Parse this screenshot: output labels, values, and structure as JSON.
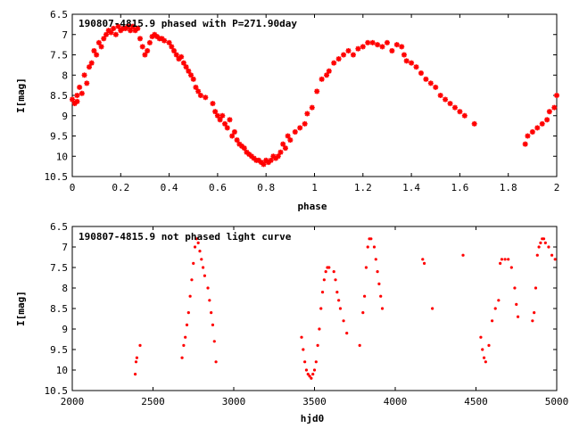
{
  "colors": {
    "points": "#ff0000",
    "axes": "#000000",
    "background": "#ffffff"
  },
  "chart_data": [
    {
      "type": "scatter",
      "title": "190807-4815.9 phased with P=271.90day",
      "xlabel": "phase",
      "ylabel": "I[mag]",
      "xlim": [
        0,
        2
      ],
      "ylim": [
        10.5,
        6.5
      ],
      "y_inverted": true,
      "grid": false,
      "marker": "star",
      "xticks": [
        "0",
        "0.2",
        "0.4",
        "0.6",
        "0.8",
        "1",
        "1.2",
        "1.4",
        "1.6",
        "1.8",
        "2"
      ],
      "yticks": [
        "6.5",
        "7",
        "7.5",
        "8",
        "8.5",
        "9",
        "9.5",
        "10",
        "10.5"
      ],
      "points": [
        [
          0.0,
          8.6
        ],
        [
          0.01,
          8.7
        ],
        [
          0.02,
          8.5
        ],
        [
          0.02,
          8.65
        ],
        [
          0.03,
          8.3
        ],
        [
          0.04,
          8.45
        ],
        [
          0.05,
          8.0
        ],
        [
          0.06,
          8.2
        ],
        [
          0.07,
          7.8
        ],
        [
          0.08,
          7.7
        ],
        [
          0.09,
          7.4
        ],
        [
          0.1,
          7.5
        ],
        [
          0.11,
          7.2
        ],
        [
          0.12,
          7.3
        ],
        [
          0.13,
          7.1
        ],
        [
          0.14,
          7.0
        ],
        [
          0.15,
          6.9
        ],
        [
          0.16,
          6.95
        ],
        [
          0.17,
          6.85
        ],
        [
          0.18,
          7.0
        ],
        [
          0.19,
          6.8
        ],
        [
          0.2,
          6.9
        ],
        [
          0.21,
          6.85
        ],
        [
          0.22,
          6.85
        ],
        [
          0.23,
          6.8
        ],
        [
          0.24,
          6.9
        ],
        [
          0.25,
          6.8
        ],
        [
          0.26,
          6.9
        ],
        [
          0.27,
          6.85
        ],
        [
          0.28,
          7.1
        ],
        [
          0.29,
          7.3
        ],
        [
          0.3,
          7.5
        ],
        [
          0.31,
          7.4
        ],
        [
          0.32,
          7.2
        ],
        [
          0.33,
          7.05
        ],
        [
          0.34,
          7.0
        ],
        [
          0.35,
          7.05
        ],
        [
          0.36,
          7.1
        ],
        [
          0.37,
          7.1
        ],
        [
          0.38,
          7.15
        ],
        [
          0.4,
          7.2
        ],
        [
          0.41,
          7.3
        ],
        [
          0.42,
          7.4
        ],
        [
          0.43,
          7.5
        ],
        [
          0.44,
          7.6
        ],
        [
          0.45,
          7.55
        ],
        [
          0.46,
          7.7
        ],
        [
          0.47,
          7.8
        ],
        [
          0.48,
          7.9
        ],
        [
          0.49,
          8.0
        ],
        [
          0.5,
          8.1
        ],
        [
          0.51,
          8.3
        ],
        [
          0.52,
          8.4
        ],
        [
          0.53,
          8.5
        ],
        [
          0.55,
          8.55
        ],
        [
          0.58,
          8.7
        ],
        [
          0.59,
          8.9
        ],
        [
          0.6,
          9.0
        ],
        [
          0.61,
          9.1
        ],
        [
          0.62,
          9.0
        ],
        [
          0.63,
          9.2
        ],
        [
          0.64,
          9.3
        ],
        [
          0.65,
          9.1
        ],
        [
          0.66,
          9.5
        ],
        [
          0.67,
          9.4
        ],
        [
          0.68,
          9.6
        ],
        [
          0.69,
          9.7
        ],
        [
          0.7,
          9.75
        ],
        [
          0.71,
          9.8
        ],
        [
          0.72,
          9.9
        ],
        [
          0.73,
          9.95
        ],
        [
          0.74,
          10.0
        ],
        [
          0.75,
          10.05
        ],
        [
          0.76,
          10.1
        ],
        [
          0.77,
          10.1
        ],
        [
          0.78,
          10.15
        ],
        [
          0.79,
          10.2
        ],
        [
          0.8,
          10.1
        ],
        [
          0.81,
          10.15
        ],
        [
          0.82,
          10.1
        ],
        [
          0.83,
          10.0
        ],
        [
          0.84,
          10.05
        ],
        [
          0.85,
          10.0
        ],
        [
          0.86,
          9.9
        ],
        [
          0.87,
          9.7
        ],
        [
          0.88,
          9.8
        ],
        [
          0.89,
          9.5
        ],
        [
          0.9,
          9.6
        ],
        [
          0.92,
          9.4
        ],
        [
          0.94,
          9.3
        ],
        [
          0.96,
          9.2
        ],
        [
          0.97,
          8.95
        ],
        [
          0.99,
          8.8
        ],
        [
          1.01,
          8.4
        ],
        [
          1.03,
          8.1
        ],
        [
          1.05,
          8.0
        ],
        [
          1.06,
          7.9
        ],
        [
          1.08,
          7.7
        ],
        [
          1.1,
          7.6
        ],
        [
          1.12,
          7.5
        ],
        [
          1.14,
          7.4
        ],
        [
          1.16,
          7.5
        ],
        [
          1.18,
          7.35
        ],
        [
          1.2,
          7.3
        ],
        [
          1.22,
          7.2
        ],
        [
          1.24,
          7.2
        ],
        [
          1.26,
          7.25
        ],
        [
          1.28,
          7.3
        ],
        [
          1.3,
          7.2
        ],
        [
          1.32,
          7.4
        ],
        [
          1.34,
          7.25
        ],
        [
          1.36,
          7.3
        ],
        [
          1.37,
          7.5
        ],
        [
          1.38,
          7.65
        ],
        [
          1.4,
          7.7
        ],
        [
          1.42,
          7.8
        ],
        [
          1.44,
          7.95
        ],
        [
          1.46,
          8.1
        ],
        [
          1.48,
          8.2
        ],
        [
          1.5,
          8.3
        ],
        [
          1.52,
          8.5
        ],
        [
          1.54,
          8.6
        ],
        [
          1.56,
          8.7
        ],
        [
          1.58,
          8.8
        ],
        [
          1.6,
          8.9
        ],
        [
          1.62,
          9.0
        ],
        [
          1.66,
          9.2
        ],
        [
          1.87,
          9.7
        ],
        [
          1.88,
          9.5
        ],
        [
          1.9,
          9.4
        ],
        [
          1.92,
          9.3
        ],
        [
          1.94,
          9.2
        ],
        [
          1.96,
          9.1
        ],
        [
          1.97,
          8.9
        ],
        [
          1.99,
          8.8
        ],
        [
          2.0,
          8.5
        ]
      ]
    },
    {
      "type": "scatter",
      "title": "190807-4815.9 not phased light curve",
      "xlabel": "hjd0",
      "ylabel": "I[mag]",
      "xlim": [
        2000,
        5000
      ],
      "ylim": [
        10.5,
        6.5
      ],
      "y_inverted": true,
      "grid": false,
      "marker": "dot",
      "xticks": [
        "2000",
        "2500",
        "3000",
        "3500",
        "4000",
        "4500",
        "5000"
      ],
      "yticks": [
        "6.5",
        "7",
        "7.5",
        "8",
        "8.5",
        "9",
        "9.5",
        "10",
        "10.5"
      ],
      "points": [
        [
          2390,
          10.1
        ],
        [
          2395,
          9.8
        ],
        [
          2400,
          9.7
        ],
        [
          2420,
          9.4
        ],
        [
          2680,
          9.7
        ],
        [
          2690,
          9.4
        ],
        [
          2700,
          9.2
        ],
        [
          2710,
          8.9
        ],
        [
          2720,
          8.6
        ],
        [
          2730,
          8.2
        ],
        [
          2740,
          7.8
        ],
        [
          2750,
          7.4
        ],
        [
          2760,
          7.0
        ],
        [
          2770,
          6.8
        ],
        [
          2780,
          6.9
        ],
        [
          2790,
          7.1
        ],
        [
          2800,
          7.3
        ],
        [
          2810,
          7.5
        ],
        [
          2820,
          7.7
        ],
        [
          2840,
          8.0
        ],
        [
          2850,
          8.3
        ],
        [
          2860,
          8.6
        ],
        [
          2870,
          8.9
        ],
        [
          2880,
          9.3
        ],
        [
          2890,
          9.8
        ],
        [
          3420,
          9.2
        ],
        [
          3430,
          9.5
        ],
        [
          3440,
          9.8
        ],
        [
          3450,
          10.0
        ],
        [
          3460,
          10.1
        ],
        [
          3470,
          10.15
        ],
        [
          3480,
          10.2
        ],
        [
          3490,
          10.1
        ],
        [
          3500,
          10.0
        ],
        [
          3510,
          9.8
        ],
        [
          3520,
          9.4
        ],
        [
          3530,
          9.0
        ],
        [
          3540,
          8.5
        ],
        [
          3550,
          8.1
        ],
        [
          3560,
          7.8
        ],
        [
          3570,
          7.6
        ],
        [
          3580,
          7.5
        ],
        [
          3590,
          7.5
        ],
        [
          3620,
          7.6
        ],
        [
          3630,
          7.8
        ],
        [
          3640,
          8.1
        ],
        [
          3650,
          8.3
        ],
        [
          3660,
          8.5
        ],
        [
          3680,
          8.8
        ],
        [
          3700,
          9.1
        ],
        [
          3780,
          9.4
        ],
        [
          3800,
          8.6
        ],
        [
          3810,
          8.2
        ],
        [
          3820,
          7.5
        ],
        [
          3830,
          7.0
        ],
        [
          3840,
          6.8
        ],
        [
          3850,
          6.8
        ],
        [
          3870,
          7.0
        ],
        [
          3880,
          7.3
        ],
        [
          3890,
          7.6
        ],
        [
          3900,
          7.9
        ],
        [
          3910,
          8.2
        ],
        [
          3920,
          8.5
        ],
        [
          4170,
          7.3
        ],
        [
          4180,
          7.4
        ],
        [
          4230,
          8.5
        ],
        [
          4420,
          7.2
        ],
        [
          4530,
          9.2
        ],
        [
          4540,
          9.5
        ],
        [
          4550,
          9.7
        ],
        [
          4560,
          9.8
        ],
        [
          4580,
          9.4
        ],
        [
          4600,
          8.8
        ],
        [
          4620,
          8.5
        ],
        [
          4640,
          8.3
        ],
        [
          4650,
          7.4
        ],
        [
          4660,
          7.3
        ],
        [
          4680,
          7.3
        ],
        [
          4700,
          7.3
        ],
        [
          4720,
          7.5
        ],
        [
          4740,
          8.0
        ],
        [
          4750,
          8.4
        ],
        [
          4760,
          8.7
        ],
        [
          4850,
          8.8
        ],
        [
          4860,
          8.6
        ],
        [
          4870,
          8.0
        ],
        [
          4880,
          7.2
        ],
        [
          4890,
          7.0
        ],
        [
          4900,
          6.9
        ],
        [
          4910,
          6.8
        ],
        [
          4920,
          6.8
        ],
        [
          4930,
          6.9
        ],
        [
          4950,
          7.0
        ],
        [
          4970,
          7.2
        ],
        [
          4990,
          7.3
        ]
      ]
    }
  ]
}
